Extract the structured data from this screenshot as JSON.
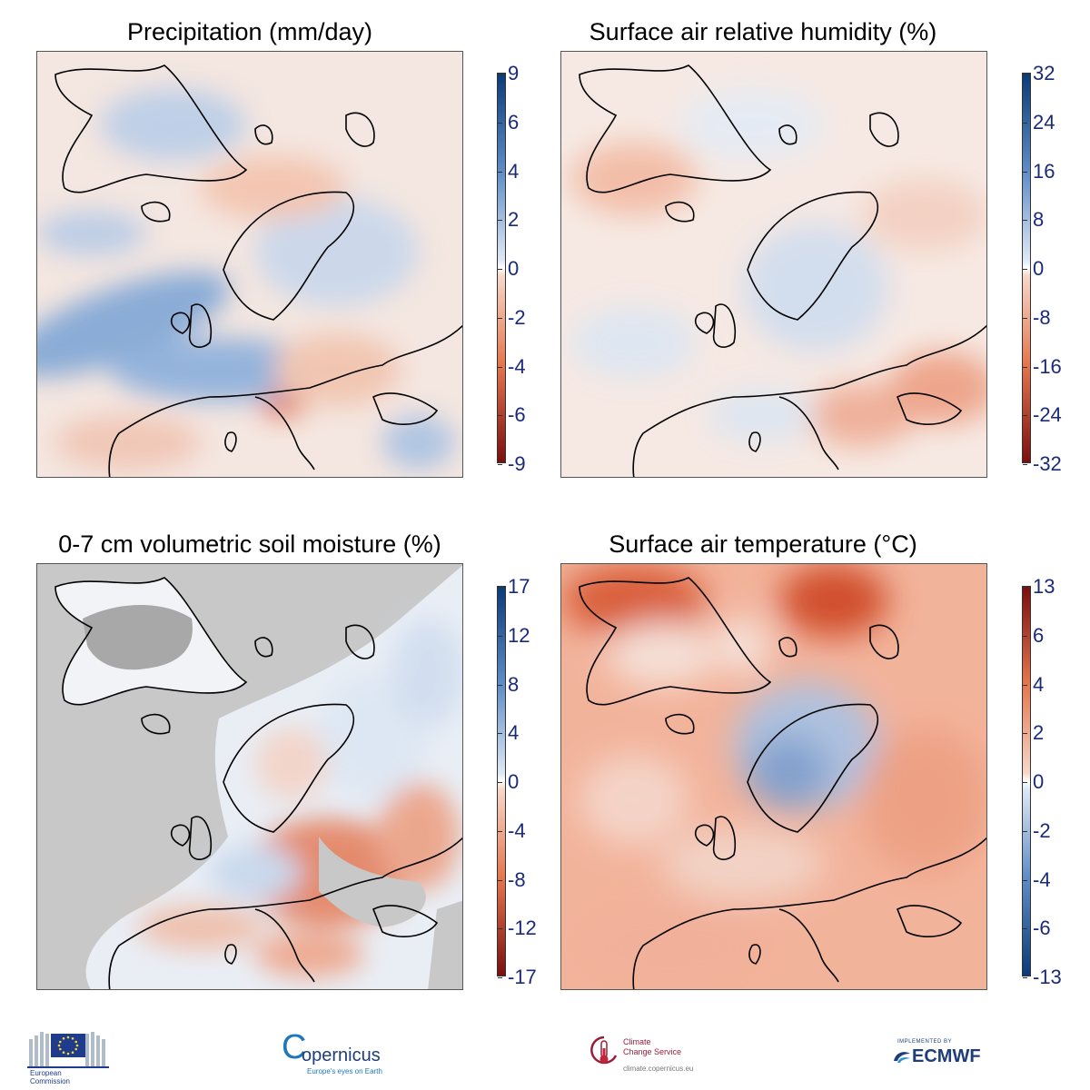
{
  "panels": [
    {
      "title": "Precipitation (mm/day)",
      "colorbar_ticks": [
        "9",
        "6",
        "4",
        "2",
        "0",
        "-2",
        "-4",
        "-6",
        "-9"
      ],
      "scale": "blue-red",
      "high_color": "#0b3b78",
      "low_color": "#7a0f0f"
    },
    {
      "title": "Surface air relative humidity (%)",
      "colorbar_ticks": [
        "32",
        "24",
        "16",
        "8",
        "0",
        "-8",
        "-16",
        "-24",
        "-32"
      ],
      "scale": "blue-red",
      "high_color": "#0b3b78",
      "low_color": "#7a0f0f"
    },
    {
      "title": "0-7 cm volumetric soil moisture (%)",
      "colorbar_ticks": [
        "17",
        "12",
        "8",
        "4",
        "0",
        "-4",
        "-8",
        "-12",
        "-17"
      ],
      "scale": "blue-red",
      "masked_color": "#c8c8c8",
      "high_color": "#0b3b78",
      "low_color": "#7a0f0f"
    },
    {
      "title": "Surface air temperature (°C)",
      "colorbar_ticks": [
        "13",
        "6",
        "4",
        "2",
        "0",
        "-2",
        "-4",
        "-6",
        "-13"
      ],
      "scale": "red-blue",
      "high_color": "#7a0f0f",
      "low_color": "#0b3b78"
    }
  ],
  "footer": {
    "ec_logo_text": [
      "European",
      "Commission"
    ],
    "copernicus_name": "opernicus",
    "copernicus_initial": "C",
    "copernicus_tagline": "Europe's eyes on Earth",
    "c3s_name": [
      "Climate",
      "Change Service"
    ],
    "c3s_url": "climate.copernicus.eu",
    "ecmwf_small": "IMPLEMENTED BY",
    "ecmwf_name": "ECMWF"
  }
}
